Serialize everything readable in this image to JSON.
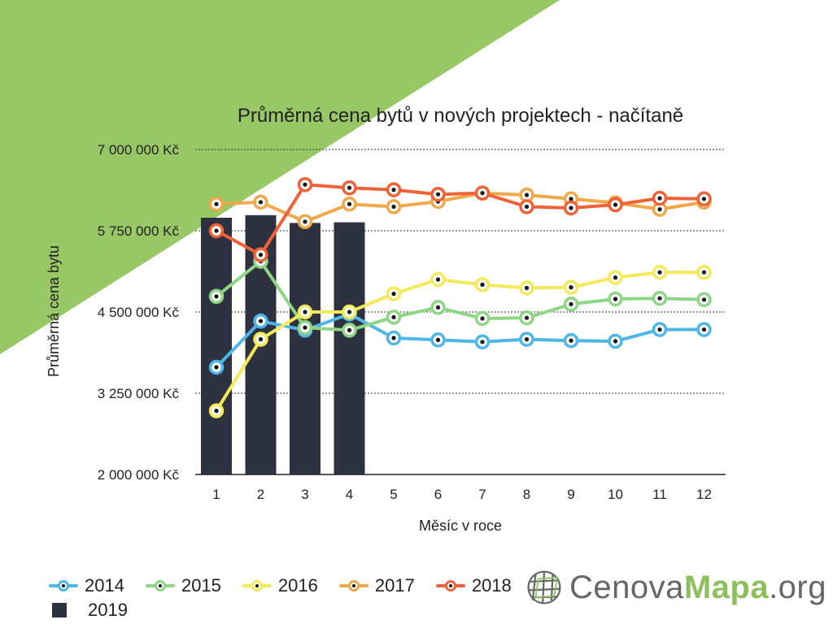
{
  "colors": {
    "background_triangle": "#98c766",
    "series_2014": "#4fb6e8",
    "series_2015": "#8ed686",
    "series_2016": "#f4e95a",
    "series_2017": "#f0a84a",
    "series_2018": "#ef6237",
    "bars_2019": "#2e3240"
  },
  "legend": {
    "items": [
      {
        "label": "2014",
        "color": "#4fb6e8"
      },
      {
        "label": "2015",
        "color": "#8ed686"
      },
      {
        "label": "2016",
        "color": "#f4e95a"
      },
      {
        "label": "2017",
        "color": "#f0a84a"
      },
      {
        "label": "2018",
        "color": "#ef6237"
      }
    ],
    "bar_item": {
      "label": "2019",
      "color": "#2e3240"
    }
  },
  "logo": {
    "text_gray": "Cenova",
    "text_green": "Mapa",
    "text_suffix": ".org",
    "icon": "globe-grid-icon"
  },
  "chart_data": {
    "type": "line",
    "title": "Průměrná cena bytů v nových projektech - načítaně",
    "xlabel": "Měsíc v roce",
    "ylabel": "Průměrná cena bytu",
    "categories": [
      "1",
      "2",
      "3",
      "4",
      "5",
      "6",
      "7",
      "8",
      "9",
      "10",
      "11",
      "12"
    ],
    "ylim": [
      2000000,
      7000000
    ],
    "yticks": [
      2000000,
      3250000,
      4500000,
      5750000,
      7000000
    ],
    "ytick_labels": [
      "2 000 000 Kč",
      "3 250 000 Kč",
      "4 500 000 Kč",
      "5 750 000 Kč",
      "7 000 000 Kč"
    ],
    "grid": true,
    "legend_position": "bottom-left",
    "bars": {
      "name": "2019",
      "values": [
        5950000,
        5990000,
        5870000,
        5880000
      ]
    },
    "series": [
      {
        "name": "2014",
        "values": [
          3650000,
          4360000,
          4220000,
          4470000,
          4100000,
          4070000,
          4040000,
          4080000,
          4060000,
          4050000,
          4230000,
          4230000
        ]
      },
      {
        "name": "2015",
        "values": [
          4740000,
          5280000,
          4260000,
          4220000,
          4420000,
          4570000,
          4400000,
          4410000,
          4620000,
          4700000,
          4710000,
          4690000
        ]
      },
      {
        "name": "2016",
        "values": [
          2980000,
          4080000,
          4500000,
          4500000,
          4780000,
          5000000,
          4920000,
          4870000,
          4880000,
          5030000,
          5110000,
          5110000
        ]
      },
      {
        "name": "2017",
        "values": [
          6160000,
          6190000,
          5890000,
          6160000,
          6120000,
          6200000,
          6330000,
          6300000,
          6240000,
          6180000,
          6080000,
          6190000
        ]
      },
      {
        "name": "2018",
        "values": [
          5750000,
          5380000,
          6460000,
          6410000,
          6380000,
          6310000,
          6330000,
          6120000,
          6100000,
          6150000,
          6250000,
          6240000
        ]
      }
    ]
  }
}
